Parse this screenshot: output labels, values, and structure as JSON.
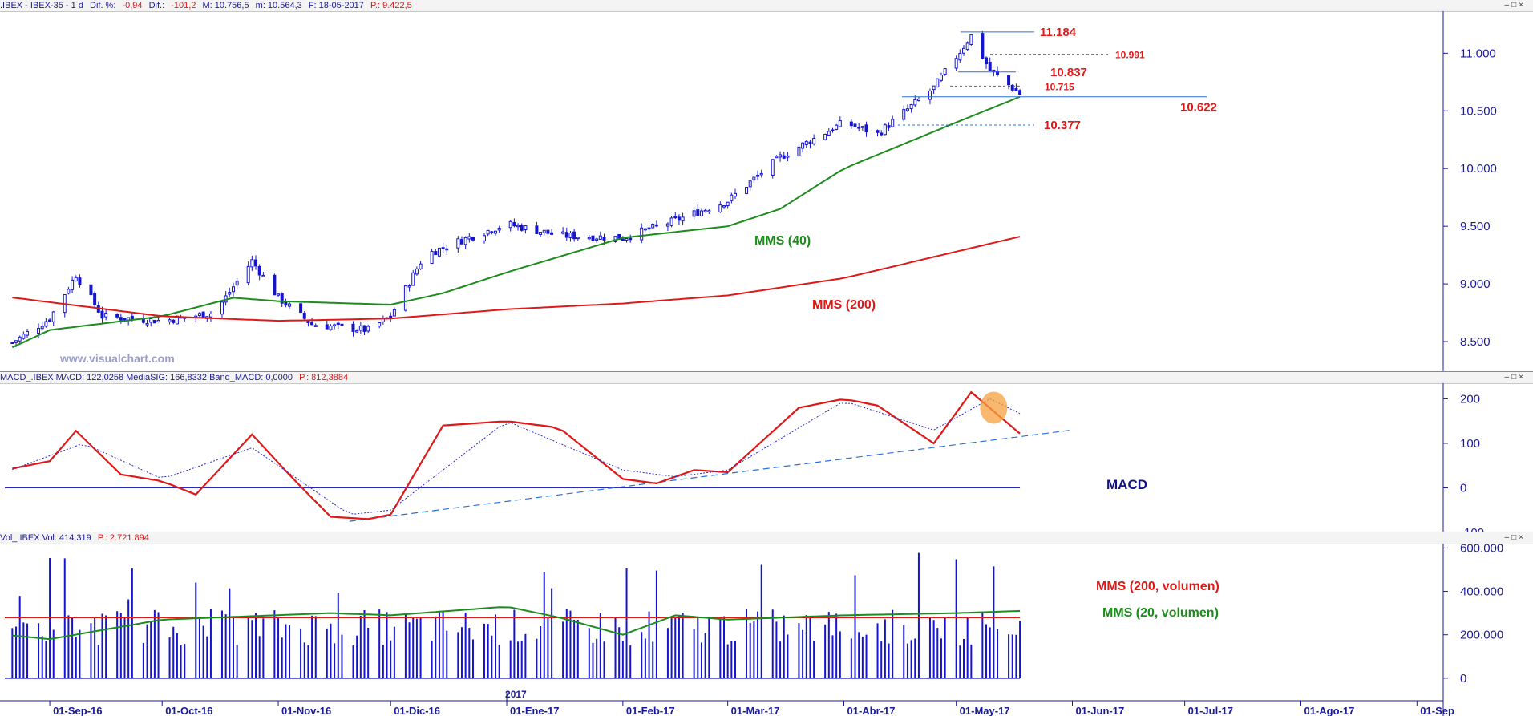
{
  "colors": {
    "price_candle": "#1515d0",
    "sma40": "#1c8c1c",
    "sma200": "#e01818",
    "macd": "#e01818",
    "signal": "#2a2ad0",
    "axis": "#1a1a9a",
    "annotation_red": "#e01818",
    "watermark": "#9aa0c8"
  },
  "header_main": {
    "symbol": ".IBEX - IBEX-35 -  1 d",
    "dif_pct_label": "Dif. %:",
    "dif_pct_value": "-0,94",
    "dif_label": "Dif.:",
    "dif_value": "-101,2",
    "max": "M: 10.756,5",
    "min": "m: 10.564,3",
    "date": "F: 18-05-2017",
    "p_value": "P.: 9.422,5"
  },
  "header_macd": {
    "text": "MACD_.IBEX MACD: 122,0258 MediaSIG: 166,8332 Band_MACD: 0,0000",
    "p_value": "P.: 812,3884"
  },
  "header_vol": {
    "text": "Vol_.IBEX Vol: 414.319",
    "p_value": "P.: 2.721.894"
  },
  "watermark": "www.visualchart.com",
  "x_axis": {
    "year_label": "2017",
    "months": [
      "01-Sep-16",
      "01-Oct-16",
      "01-Nov-16",
      "01-Dic-16",
      "01-Ene-17",
      "01-Feb-17",
      "01-Mar-17",
      "01-Abr-17",
      "01-May-17",
      "01-Jun-17",
      "01-Jul-17",
      "01-Ago-17",
      "01-Sep"
    ]
  },
  "chart_data": [
    {
      "type": "candlestick",
      "title": "IBEX-35 diario",
      "ylim": [
        8250,
        11350
      ],
      "yticks": [
        "8.500",
        "9.000",
        "9.500",
        "10.000",
        "10.500",
        "11.000"
      ],
      "yticks_values": [
        8500,
        9000,
        9500,
        10000,
        10500,
        11000
      ],
      "approx_close_path": [
        {
          "x": "20-Aug-16",
          "y": 8450
        },
        {
          "x": "01-Sep-16",
          "y": 8700
        },
        {
          "x": "08-Sep-16",
          "y": 9080
        },
        {
          "x": "15-Sep-16",
          "y": 8720
        },
        {
          "x": "01-Oct-16",
          "y": 8680
        },
        {
          "x": "15-Oct-16",
          "y": 8750
        },
        {
          "x": "25-Oct-16",
          "y": 9200
        },
        {
          "x": "01-Nov-16",
          "y": 8880
        },
        {
          "x": "10-Nov-16",
          "y": 8650
        },
        {
          "x": "25-Nov-16",
          "y": 8600
        },
        {
          "x": "01-Dic-16",
          "y": 8720
        },
        {
          "x": "10-Dic-16",
          "y": 9250
        },
        {
          "x": "20-Dic-16",
          "y": 9380
        },
        {
          "x": "01-Ene-17",
          "y": 9520
        },
        {
          "x": "15-Ene-17",
          "y": 9420
        },
        {
          "x": "01-Feb-17",
          "y": 9400
        },
        {
          "x": "15-Feb-17",
          "y": 9550
        },
        {
          "x": "01-Mar-17",
          "y": 9720
        },
        {
          "x": "15-Mar-17",
          "y": 10100
        },
        {
          "x": "01-Abr-17",
          "y": 10400
        },
        {
          "x": "10-Abr-17",
          "y": 10300
        },
        {
          "x": "25-Abr-17",
          "y": 10700
        },
        {
          "x": "05-May-17",
          "y": 11150
        },
        {
          "x": "10-May-17",
          "y": 10850
        },
        {
          "x": "18-May-17",
          "y": 10650
        }
      ],
      "series": [
        {
          "name": "MMS (40)",
          "approx_path": [
            {
              "x": "20-Aug-16",
              "y": 8420
            },
            {
              "x": "01-Sep-16",
              "y": 8600
            },
            {
              "x": "01-Oct-16",
              "y": 8720
            },
            {
              "x": "20-Oct-16",
              "y": 8880
            },
            {
              "x": "01-Nov-16",
              "y": 8850
            },
            {
              "x": "01-Dic-16",
              "y": 8820
            },
            {
              "x": "15-Dic-16",
              "y": 8920
            },
            {
              "x": "01-Ene-17",
              "y": 9100
            },
            {
              "x": "01-Feb-17",
              "y": 9400
            },
            {
              "x": "01-Mar-17",
              "y": 9500
            },
            {
              "x": "15-Mar-17",
              "y": 9650
            },
            {
              "x": "01-Abr-17",
              "y": 10000
            },
            {
              "x": "01-May-17",
              "y": 10400
            },
            {
              "x": "18-May-17",
              "y": 10622
            }
          ]
        },
        {
          "name": "MMS (200)",
          "approx_path": [
            {
              "x": "20-Aug-16",
              "y": 8890
            },
            {
              "x": "01-Oct-16",
              "y": 8720
            },
            {
              "x": "01-Nov-16",
              "y": 8680
            },
            {
              "x": "01-Dic-16",
              "y": 8700
            },
            {
              "x": "01-Ene-17",
              "y": 8780
            },
            {
              "x": "01-Feb-17",
              "y": 8830
            },
            {
              "x": "01-Mar-17",
              "y": 8900
            },
            {
              "x": "01-Abr-17",
              "y": 9050
            },
            {
              "x": "01-May-17",
              "y": 9280
            },
            {
              "x": "18-May-17",
              "y": 9410
            }
          ]
        }
      ],
      "annotations": [
        {
          "text": "11.184",
          "value": 11184,
          "style": "solid"
        },
        {
          "text": "10.991",
          "value": 10991,
          "style": "dotted"
        },
        {
          "text": "10.837",
          "value": 10837,
          "style": "solid"
        },
        {
          "text": "10.715",
          "value": 10715,
          "style": "dotted"
        },
        {
          "text": "10.622",
          "value": 10622,
          "style": "solid"
        },
        {
          "text": "10.377",
          "value": 10377,
          "style": "dotted"
        }
      ],
      "labels": {
        "sma40": "MMS (40)",
        "sma200": "MMS (200)"
      }
    },
    {
      "type": "line",
      "title": "MACD",
      "label": "MACD",
      "ylim": [
        -100,
        235
      ],
      "yticks": [
        "200",
        "100",
        "0",
        "-100"
      ],
      "yticks_values": [
        200,
        100,
        0,
        -100
      ],
      "series": [
        {
          "name": "MACD",
          "approx_path": [
            {
              "x": "20-Aug-16",
              "y": 40
            },
            {
              "x": "01-Sep-16",
              "y": 60
            },
            {
              "x": "08-Sep-16",
              "y": 128
            },
            {
              "x": "20-Sep-16",
              "y": 30
            },
            {
              "x": "01-Oct-16",
              "y": 15
            },
            {
              "x": "10-Oct-16",
              "y": -15
            },
            {
              "x": "25-Oct-16",
              "y": 120
            },
            {
              "x": "05-Nov-16",
              "y": 20
            },
            {
              "x": "15-Nov-16",
              "y": -65
            },
            {
              "x": "25-Nov-16",
              "y": -70
            },
            {
              "x": "01-Dic-16",
              "y": -60
            },
            {
              "x": "15-Dic-16",
              "y": 140
            },
            {
              "x": "01-Ene-17",
              "y": 150
            },
            {
              "x": "15-Ene-17",
              "y": 135
            },
            {
              "x": "01-Feb-17",
              "y": 20
            },
            {
              "x": "10-Feb-17",
              "y": 10
            },
            {
              "x": "20-Feb-17",
              "y": 40
            },
            {
              "x": "01-Mar-17",
              "y": 35
            },
            {
              "x": "20-Mar-17",
              "y": 180
            },
            {
              "x": "01-Abr-17",
              "y": 200
            },
            {
              "x": "10-Abr-17",
              "y": 185
            },
            {
              "x": "25-Abr-17",
              "y": 100
            },
            {
              "x": "05-May-17",
              "y": 215
            },
            {
              "x": "18-May-17",
              "y": 122
            }
          ]
        },
        {
          "name": "MediaSIG",
          "approx_path": [
            {
              "x": "20-Aug-16",
              "y": 35
            },
            {
              "x": "10-Sep-16",
              "y": 100
            },
            {
              "x": "01-Oct-16",
              "y": 20
            },
            {
              "x": "25-Oct-16",
              "y": 90
            },
            {
              "x": "20-Nov-16",
              "y": -60
            },
            {
              "x": "01-Dic-16",
              "y": -50
            },
            {
              "x": "01-Ene-17",
              "y": 150
            },
            {
              "x": "01-Feb-17",
              "y": 40
            },
            {
              "x": "15-Feb-17",
              "y": 25
            },
            {
              "x": "01-Mar-17",
              "y": 40
            },
            {
              "x": "01-Abr-17",
              "y": 195
            },
            {
              "x": "25-Abr-17",
              "y": 130
            },
            {
              "x": "10-May-17",
              "y": 200
            },
            {
              "x": "18-May-17",
              "y": 167
            }
          ]
        }
      ],
      "trendline": {
        "from": {
          "x": "20-Nov-16",
          "y": -75
        },
        "to": {
          "x": "01-Jun-17",
          "y": 130
        }
      },
      "zero_line": 0
    },
    {
      "type": "bar",
      "title": "Vol_.IBEX",
      "ylim": [
        -30000,
        620000
      ],
      "yticks": [
        "600.000",
        "400.000",
        "200.000",
        "0"
      ],
      "yticks_values": [
        600000,
        400000,
        200000,
        0
      ],
      "series": [
        {
          "name": "Vol",
          "approx_typical_range": [
            150000,
            320000
          ],
          "last_value": 414319
        },
        {
          "name": "MMS (200, volumen)",
          "approx_level": 280000
        },
        {
          "name": "MMS (20, volumen)",
          "approx_path": [
            {
              "x": "20-Aug-16",
              "y": 200000
            },
            {
              "x": "01-Sep-16",
              "y": 180000
            },
            {
              "x": "01-Oct-16",
              "y": 270000
            },
            {
              "x": "15-Nov-16",
              "y": 300000
            },
            {
              "x": "01-Dic-16",
              "y": 290000
            },
            {
              "x": "01-Ene-17",
              "y": 330000
            },
            {
              "x": "15-Ene-17",
              "y": 280000
            },
            {
              "x": "01-Feb-17",
              "y": 200000
            },
            {
              "x": "15-Feb-17",
              "y": 290000
            },
            {
              "x": "01-Mar-17",
              "y": 270000
            },
            {
              "x": "01-Abr-17",
              "y": 290000
            },
            {
              "x": "01-May-17",
              "y": 300000
            },
            {
              "x": "18-May-17",
              "y": 310000
            }
          ]
        }
      ],
      "labels": {
        "sma200": "MMS (200, volumen)",
        "sma20": "MMS (20, volumen)"
      }
    }
  ]
}
